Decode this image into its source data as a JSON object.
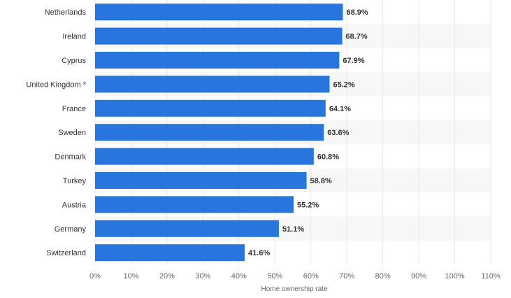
{
  "chart_data": {
    "type": "bar",
    "orientation": "horizontal",
    "categories": [
      "Netherlands",
      "Ireland",
      "Cyprus",
      "United Kingdom *",
      "France",
      "Sweden",
      "Denmark",
      "Turkey",
      "Austria",
      "Germany",
      "Switzerland"
    ],
    "values": [
      68.9,
      68.7,
      67.9,
      65.2,
      64.1,
      63.6,
      60.8,
      58.8,
      55.2,
      51.1,
      41.6
    ],
    "value_labels": [
      "68.9%",
      "68.7%",
      "67.9%",
      "65.2%",
      "64.1%",
      "63.6%",
      "60.8%",
      "58.8%",
      "55.2%",
      "51.1%",
      "41.6%"
    ],
    "xlabel": "Home ownership rate",
    "ylabel": "",
    "xlim": [
      0,
      110
    ],
    "x_ticks": [
      0,
      10,
      20,
      30,
      40,
      50,
      60,
      70,
      80,
      90,
      100,
      110
    ],
    "x_tick_labels": [
      "0%",
      "10%",
      "20%",
      "30%",
      "40%",
      "50%",
      "60%",
      "70%",
      "80%",
      "90%",
      "100%",
      "110%"
    ],
    "grid": true,
    "legend": "none",
    "colors": {
      "bar": "#2876dd",
      "band": "#f7f7f7",
      "grid": "#e6e6e6"
    }
  }
}
